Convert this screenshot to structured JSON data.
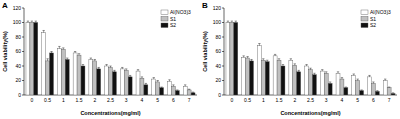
{
  "chart_data": [
    {
      "type": "bar",
      "title": "A",
      "y_label": "Cell viability(%)",
      "x_label": "Concentrations(mg/ml)",
      "categories": [
        "0",
        "0.5",
        "1",
        "1.5",
        "2",
        "2.5",
        "3",
        "4",
        "5",
        "6",
        "7"
      ],
      "series": [
        {
          "name": "Al(NO3)3",
          "color": "#ffffff",
          "values": [
            100,
            86,
            64,
            58,
            49,
            40,
            36,
            33,
            22,
            19,
            12
          ],
          "errors": [
            2,
            3,
            3,
            2,
            2,
            2,
            2,
            2,
            2,
            2,
            2
          ]
        },
        {
          "name": "S1",
          "color": "#c0c0c0",
          "values": [
            100,
            47,
            63,
            55,
            47,
            38,
            34,
            23,
            18,
            12,
            7
          ],
          "errors": [
            2,
            3,
            2,
            2,
            2,
            2,
            2,
            2,
            2,
            2,
            1
          ]
        },
        {
          "name": "S2",
          "color": "#111111",
          "values": [
            100,
            58,
            49,
            40,
            36,
            32,
            25,
            14,
            10,
            6,
            3
          ],
          "errors": [
            2,
            2,
            2,
            2,
            2,
            2,
            2,
            2,
            1,
            1,
            1
          ]
        }
      ],
      "ylim": [
        0,
        120
      ],
      "yticks": [
        0,
        20,
        40,
        60,
        80,
        100,
        120
      ],
      "legend": "upper-right"
    },
    {
      "type": "bar",
      "title": "B",
      "y_label": "Cell viability(%)",
      "x_label": "Concentrations(mg/ml)",
      "categories": [
        "0",
        "0.5",
        "1",
        "1.5",
        "2",
        "2.5",
        "3",
        "4",
        "5",
        "6",
        "7"
      ],
      "series": [
        {
          "name": "Al(NO3)3",
          "color": "#ffffff",
          "values": [
            100,
            52,
            68,
            54,
            48,
            40,
            33,
            30,
            27,
            25,
            20
          ],
          "errors": [
            2,
            2,
            3,
            2,
            2,
            2,
            2,
            2,
            2,
            2,
            2
          ]
        },
        {
          "name": "S1",
          "color": "#c0c0c0",
          "values": [
            100,
            51,
            48,
            48,
            41,
            35,
            30,
            22,
            20,
            16,
            10
          ],
          "errors": [
            2,
            2,
            2,
            2,
            2,
            2,
            2,
            2,
            2,
            2,
            1
          ]
        },
        {
          "name": "S2",
          "color": "#111111",
          "values": [
            100,
            47,
            46,
            40,
            32,
            28,
            16,
            10,
            6,
            5,
            2
          ],
          "errors": [
            2,
            2,
            2,
            2,
            2,
            2,
            2,
            1,
            1,
            1,
            1
          ]
        }
      ],
      "ylim": [
        0,
        120
      ],
      "yticks": [
        0,
        20,
        40,
        60,
        80,
        100,
        120
      ],
      "legend": "upper-right"
    }
  ]
}
